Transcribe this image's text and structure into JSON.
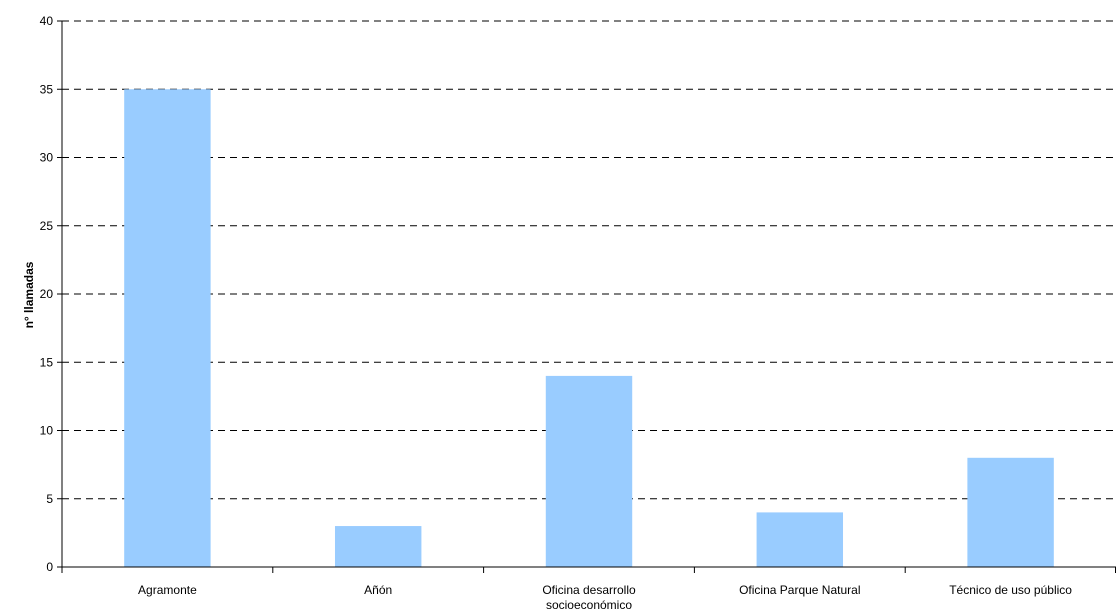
{
  "chart_data": {
    "type": "bar",
    "title": "",
    "xlabel": "",
    "ylabel": "n° llamadas",
    "categories": [
      [
        "Agramonte"
      ],
      [
        "Añón"
      ],
      [
        "Oficina desarrollo",
        "socioeconómico"
      ],
      [
        "Oficina Parque Natural"
      ],
      [
        "Técnico de uso público"
      ]
    ],
    "values": [
      35,
      3,
      14,
      4,
      8
    ],
    "ylim": [
      0,
      40
    ],
    "yticks": [
      0,
      5,
      10,
      15,
      20,
      25,
      30,
      35,
      40
    ],
    "grid": true,
    "legend": "none",
    "bar_color": "#99ccff"
  }
}
